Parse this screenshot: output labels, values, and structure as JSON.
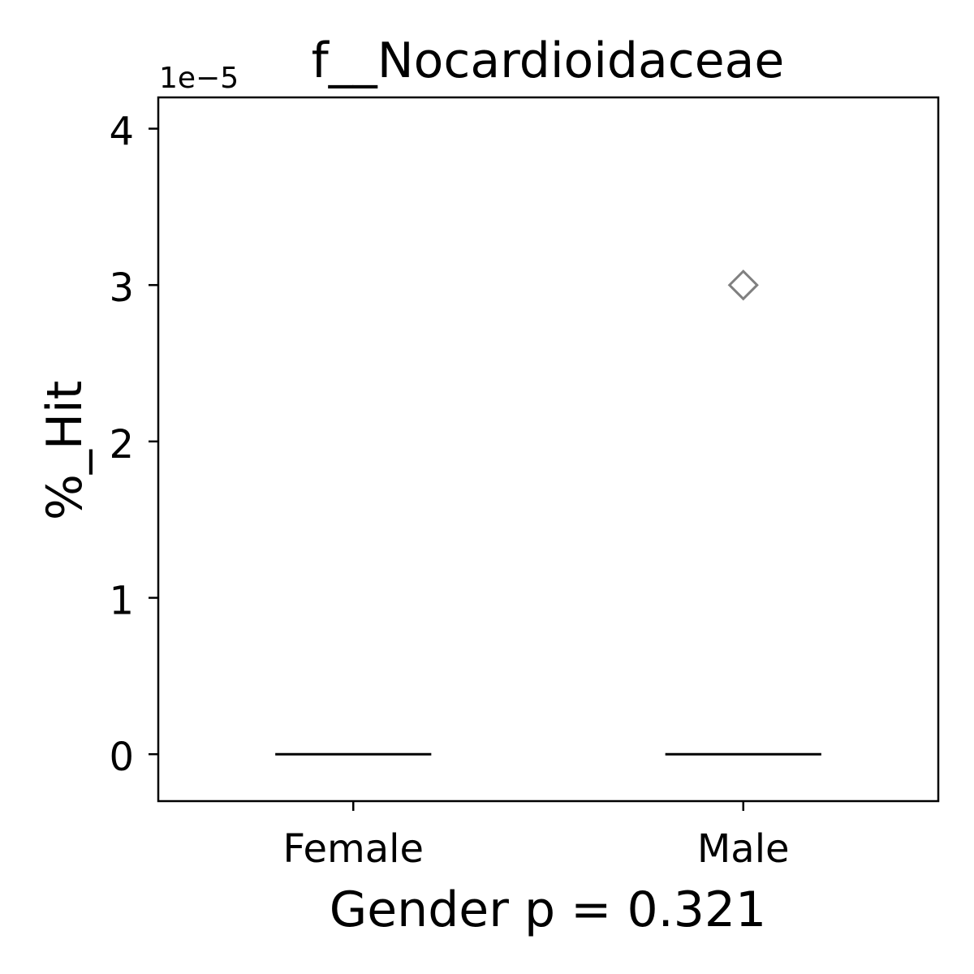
{
  "chart_data": {
    "type": "box",
    "title": "f__Nocardioidaceae",
    "xlabel": "Gender p = 0.321",
    "ylabel": "%_Hit",
    "y_offset_text": "1e−5",
    "y_scale_factor": 1e-05,
    "categories": [
      "Female",
      "Male"
    ],
    "ylim": [
      -0.3,
      4.2
    ],
    "yticks": [
      0,
      1,
      2,
      3,
      4
    ],
    "ytick_labels": [
      "0",
      "1",
      "2",
      "3",
      "4"
    ],
    "boxes": [
      {
        "category": "Female",
        "q1": 0,
        "median": 0,
        "q3": 0,
        "whisker_low": 0,
        "whisker_high": 0,
        "outliers": []
      },
      {
        "category": "Male",
        "q1": 0,
        "median": 0,
        "q3": 0,
        "whisker_low": 0,
        "whisker_high": 0,
        "outliers": [
          3
        ]
      }
    ],
    "grid": false,
    "colors": {
      "median": "#000000",
      "outlier": "#808080",
      "axes": "#000000"
    }
  }
}
